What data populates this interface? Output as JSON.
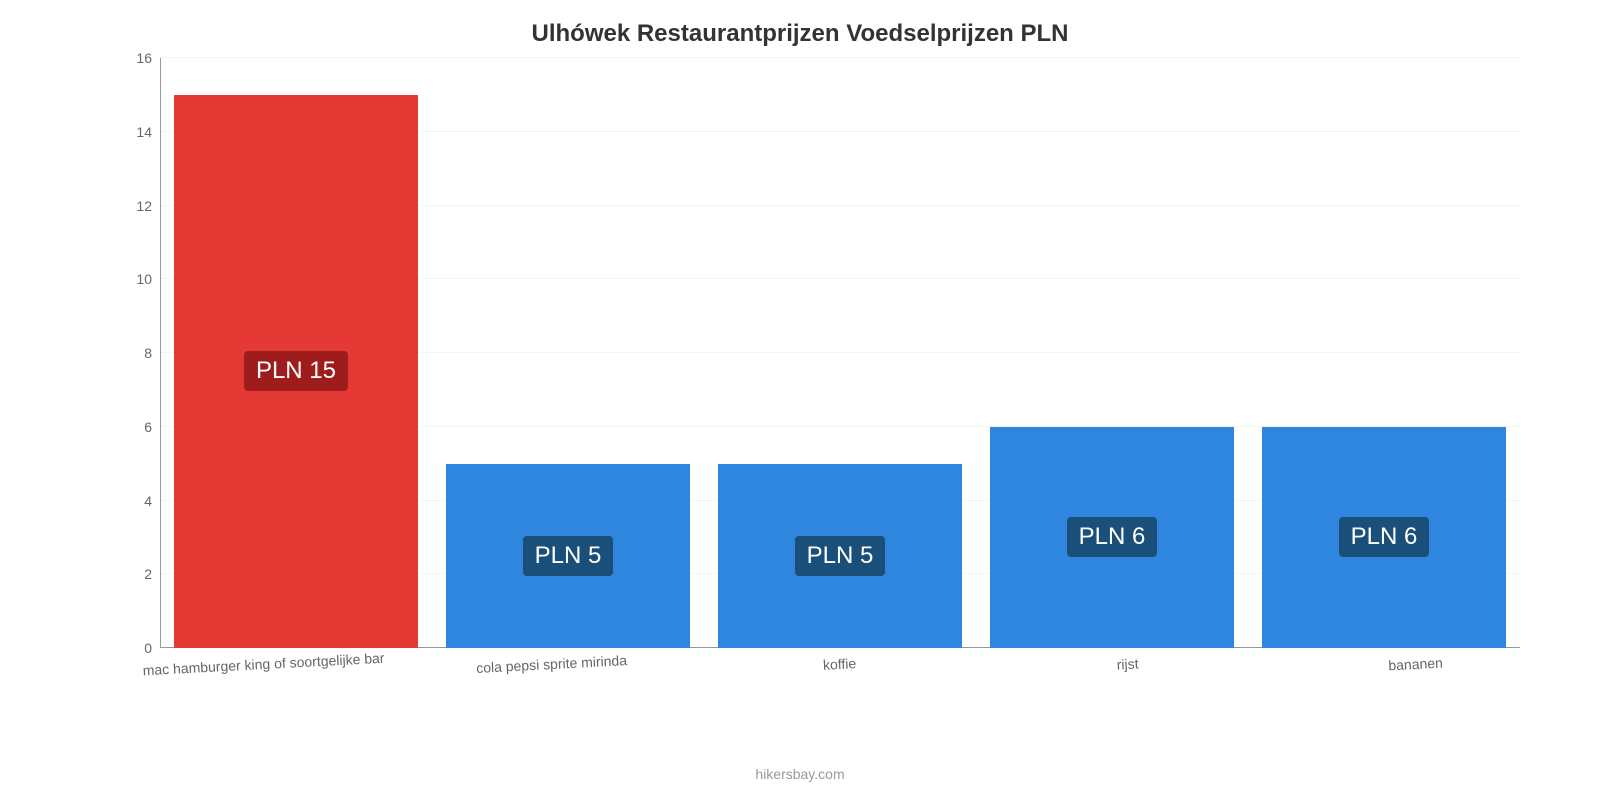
{
  "chart": {
    "type": "bar",
    "title": "Ulhówek Restaurantprijzen Voedselprijzen PLN",
    "title_fontsize": 24,
    "title_color": "#333333",
    "background_color": "#ffffff",
    "grid_color": "#f5f5f5",
    "axis_color": "#999999",
    "tick_color": "#666666",
    "tick_fontsize": 14,
    "ylim": [
      0,
      16
    ],
    "ytick_step": 2,
    "yticks": [
      0,
      2,
      4,
      6,
      8,
      10,
      12,
      14,
      16
    ],
    "categories": [
      "mac hamburger king of soortgelijke bar",
      "cola pepsi sprite mirinda",
      "koffie",
      "rijst",
      "bananen"
    ],
    "values": [
      15,
      5,
      5,
      6,
      6
    ],
    "value_labels": [
      "PLN 15",
      "PLN 5",
      "PLN 5",
      "PLN 6",
      "PLN 6"
    ],
    "bar_colors": [
      "#e53935",
      "#2e86de",
      "#2e86de",
      "#2e86de",
      "#2e86de"
    ],
    "label_bg_colors": [
      "#9e1c1c",
      "#1a4f7a",
      "#1a4f7a",
      "#1a4f7a",
      "#1a4f7a"
    ],
    "label_text_color": "#ffffff",
    "label_fontsize": 24,
    "bar_width_pct": 100,
    "x_label_rotation_deg": -3,
    "attribution": "hikersbay.com",
    "attribution_color": "#999999",
    "attribution_fontsize": 14
  }
}
